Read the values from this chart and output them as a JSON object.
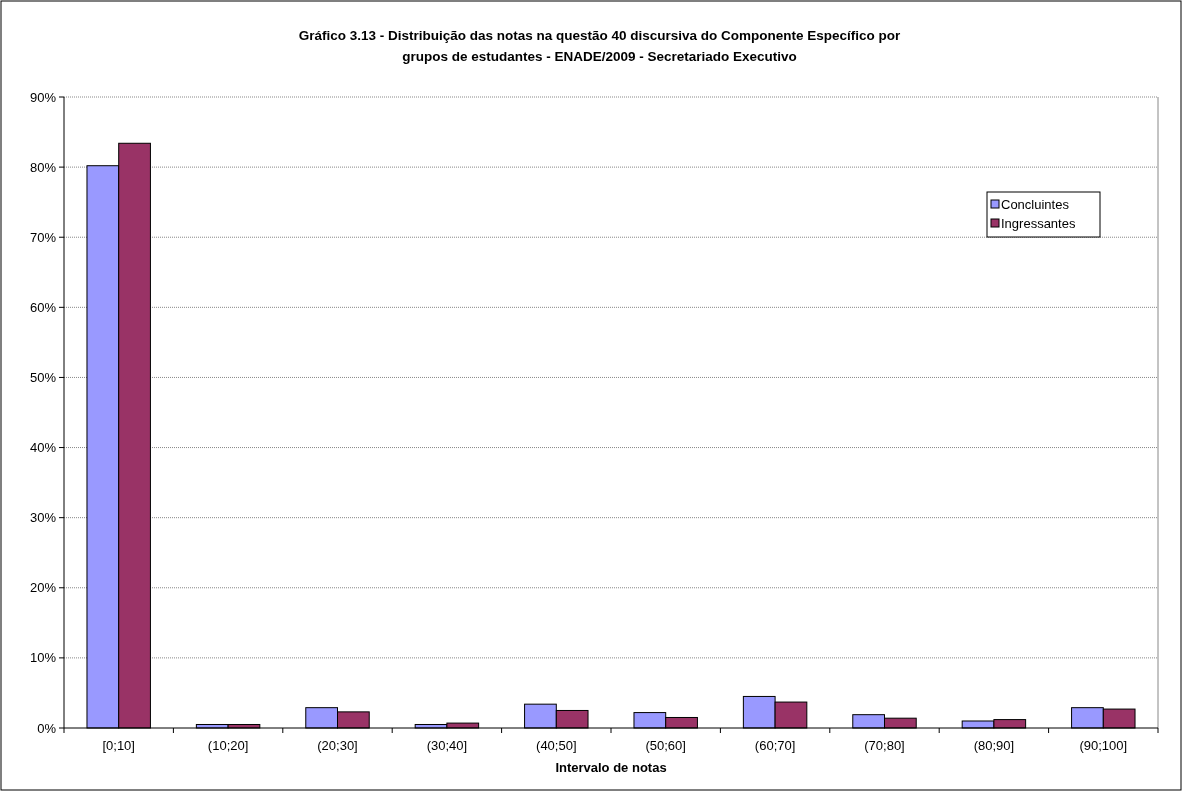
{
  "chart_data": {
    "type": "bar",
    "title": "Gráfico 3.13 - Distribuição das notas na questão 40 discursiva do Componente Específico por grupos de estudantes - ENADE/2009 - Secretariado Executivo",
    "xlabel": "Intervalo de notas",
    "categories": [
      "[0;10]",
      "(10;20]",
      "(20;30]",
      "(30;40]",
      "(40;50]",
      "(50;60]",
      "(60;70]",
      "(70;80]",
      "(80;90]",
      "(90;100]"
    ],
    "series": [
      {
        "name": "Concluintes",
        "color": "#9999ff",
        "values": [
          80.2,
          0.5,
          2.9,
          0.5,
          3.4,
          2.2,
          4.5,
          1.9,
          1.0,
          2.9
        ]
      },
      {
        "name": "Ingressantes",
        "color": "#993366",
        "values": [
          83.4,
          0.5,
          2.3,
          0.7,
          2.5,
          1.5,
          3.7,
          1.4,
          1.2,
          2.7
        ]
      }
    ],
    "ylim": [
      0,
      90
    ],
    "yticks": [
      {
        "value": 0,
        "label": "0%"
      },
      {
        "value": 10,
        "label": "10%"
      },
      {
        "value": 20,
        "label": "20%"
      },
      {
        "value": 30,
        "label": "30%"
      },
      {
        "value": 40,
        "label": "40%"
      },
      {
        "value": 50,
        "label": "50%"
      },
      {
        "value": 60,
        "label": "60%"
      },
      {
        "value": 70,
        "label": "70%"
      },
      {
        "value": 80,
        "label": "80%"
      },
      {
        "value": 90,
        "label": "90%"
      }
    ],
    "grid": "y",
    "legend": "top right"
  }
}
